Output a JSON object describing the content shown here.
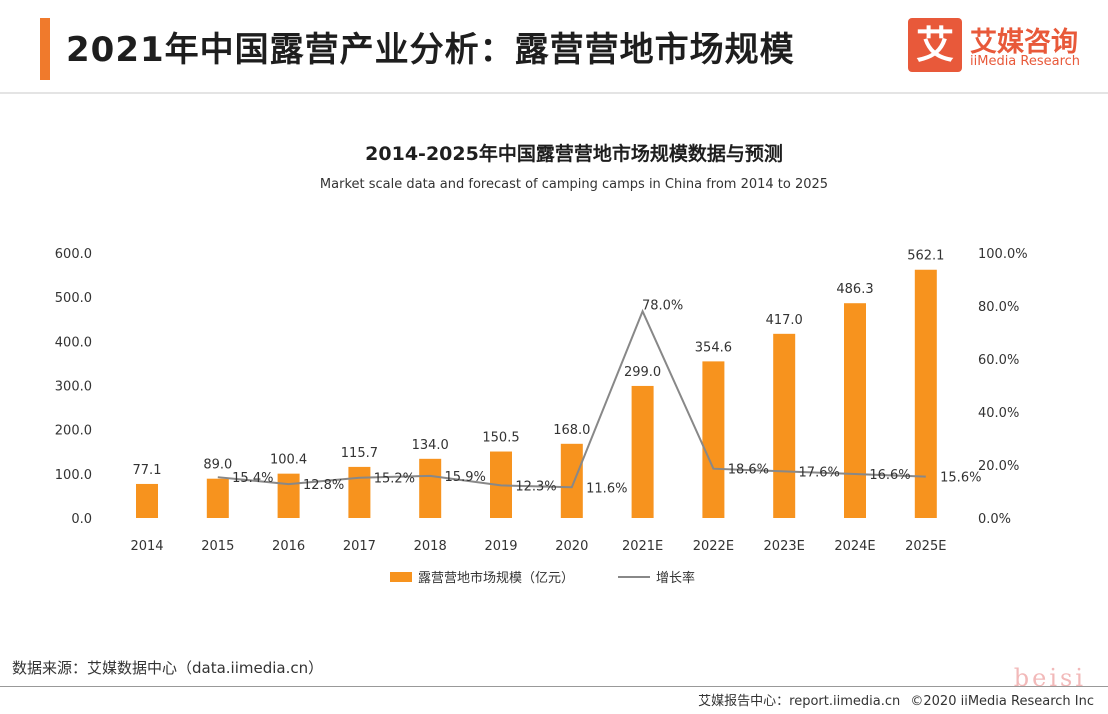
{
  "header": {
    "title": "2021年中国露营产业分析：露营营地市场规模",
    "logo_mark": "艾",
    "logo_cn": "艾媒咨询",
    "logo_en": "iiMedia Research"
  },
  "chart_data": {
    "type": "bar",
    "title": "2014-2025年中国露营营地市场规模数据与预测",
    "subtitle": "Market scale data and forecast of camping camps in China from 2014 to 2025",
    "categories": [
      "2014",
      "2015",
      "2016",
      "2017",
      "2018",
      "2019",
      "2020",
      "2021E",
      "2022E",
      "2023E",
      "2024E",
      "2025E"
    ],
    "series": [
      {
        "name": "露营营地市场规模（亿元）",
        "type": "bar",
        "color": "#f7931e",
        "values": [
          77.1,
          89.0,
          100.4,
          115.7,
          134.0,
          150.5,
          168.0,
          299.0,
          354.6,
          417.0,
          486.3,
          562.1
        ],
        "labels": [
          "77.1",
          "89.0",
          "100.4",
          "115.7",
          "134.0",
          "150.5",
          "168.0",
          "299.0",
          "354.6",
          "417.0",
          "486.3",
          "562.1"
        ]
      },
      {
        "name": "增长率",
        "type": "line",
        "color": "#888888",
        "axis": "right",
        "values": [
          null,
          15.4,
          12.8,
          15.2,
          15.9,
          12.3,
          11.6,
          78.0,
          18.6,
          17.6,
          16.6,
          15.6
        ],
        "labels": [
          "",
          "15.4%",
          "12.8%",
          "15.2%",
          "15.9%",
          "12.3%",
          "11.6%",
          "78.0%",
          "18.6%",
          "17.6%",
          "16.6%",
          "15.6%"
        ]
      }
    ],
    "y_left": {
      "min": 0,
      "max": 600,
      "ticks": [
        "0.0",
        "100.0",
        "200.0",
        "300.0",
        "400.0",
        "500.0",
        "600.0"
      ]
    },
    "y_right": {
      "min": 0,
      "max": 100,
      "ticks": [
        "0.0%",
        "20.0%",
        "40.0%",
        "60.0%",
        "80.0%",
        "100.0%"
      ]
    },
    "legend": {
      "position": "bottom"
    },
    "grid": false
  },
  "footer": {
    "source": "数据来源：艾媒数据中心（data.iimedia.cn）",
    "report_center": "艾媒报告中心：report.iimedia.cn",
    "copyright": "©2020  iiMedia Research  Inc",
    "watermark": "beisi"
  }
}
